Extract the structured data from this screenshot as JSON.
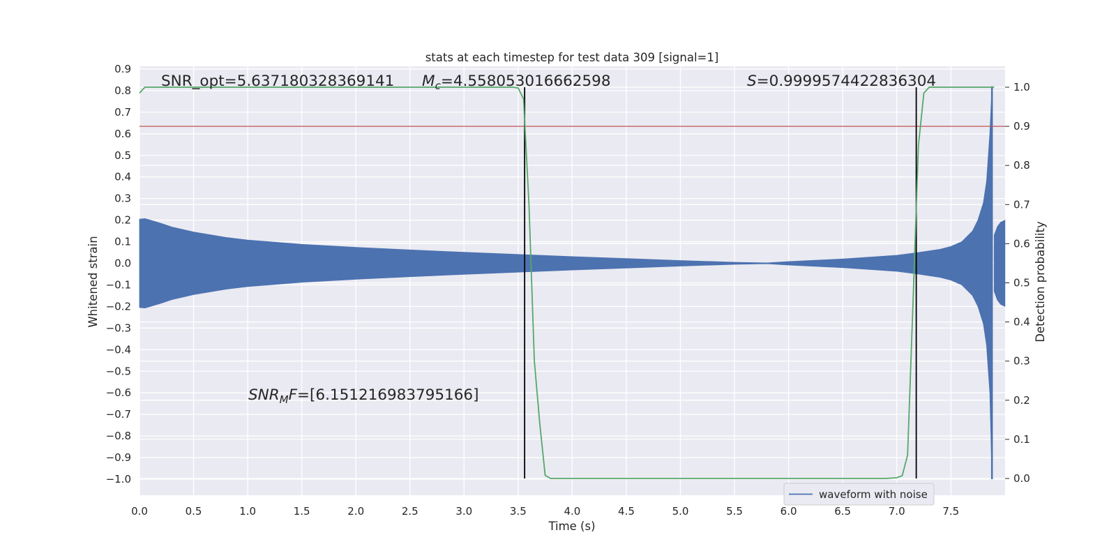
{
  "chart_data": {
    "type": "line",
    "title": "stats at each timestep for test data 309 [signal=1]",
    "xlabel": "Time (s)",
    "ylabel": "Whitened strain",
    "y2label": "Detection probability",
    "xlim": [
      0,
      8
    ],
    "ylim": [
      -1.1,
      0.9
    ],
    "y2lim": [
      -0.05,
      1.05
    ],
    "xticks": [
      0.0,
      0.5,
      1.0,
      1.5,
      2.0,
      2.5,
      3.0,
      3.5,
      4.0,
      4.5,
      5.0,
      5.5,
      6.0,
      6.5,
      7.0,
      7.5
    ],
    "xtick_labels": [
      "0.0",
      "0.5",
      "1.0",
      "1.5",
      "2.0",
      "2.5",
      "3.0",
      "3.5",
      "4.0",
      "4.5",
      "5.0",
      "5.5",
      "6.0",
      "6.5",
      "7.0",
      "7.5"
    ],
    "yticks": [
      0.9,
      0.8,
      0.7,
      0.6,
      0.5,
      0.4,
      0.3,
      0.2,
      0.1,
      0.0,
      -0.1,
      -0.2,
      -0.3,
      -0.4,
      -0.5,
      -0.6,
      -0.7,
      -0.8,
      -0.9,
      -1.0
    ],
    "ytick_labels": [
      "0.9",
      "0.8",
      "0.7",
      "0.6",
      "0.5",
      "0.4",
      "0.3",
      "0.2",
      "0.1",
      "0.0",
      "−0.1",
      "−0.2",
      "−0.3",
      "−0.4",
      "−0.5",
      "−0.6",
      "−0.7",
      "−0.8",
      "−0.9",
      "−1.0"
    ],
    "y2ticks": [
      1.0,
      0.9,
      0.8,
      0.7,
      0.6,
      0.5,
      0.4,
      0.3,
      0.2,
      0.1,
      0.0
    ],
    "y2tick_labels": [
      "1.0",
      "0.9",
      "0.8",
      "0.7",
      "0.6",
      "0.5",
      "0.4",
      "0.3",
      "0.2",
      "0.1",
      "0.0"
    ],
    "grid": true,
    "legend_position": "bottom-right",
    "colors": {
      "background": "#eaeaf2",
      "grid": "#ffffff",
      "waveform": "#4c72b0",
      "probability": "#55a868",
      "threshold": "#c44e52",
      "markers": "#000000"
    },
    "series": [
      {
        "name": "waveform with noise",
        "axis": "left",
        "kind": "envelope",
        "x": [
          0.0,
          0.05,
          0.1,
          0.2,
          0.3,
          0.5,
          0.8,
          1.0,
          1.5,
          2.0,
          2.5,
          3.0,
          3.5,
          4.0,
          4.5,
          5.0,
          5.5,
          5.8,
          6.0,
          6.5,
          7.0,
          7.2,
          7.4,
          7.5,
          7.6,
          7.7,
          7.75,
          7.8,
          7.83,
          7.86,
          7.88
        ],
        "upper": [
          0.205,
          0.207,
          0.2,
          0.185,
          0.168,
          0.145,
          0.12,
          0.108,
          0.088,
          0.074,
          0.062,
          0.051,
          0.041,
          0.031,
          0.022,
          0.013,
          0.005,
          0.002,
          0.008,
          0.02,
          0.037,
          0.05,
          0.065,
          0.078,
          0.1,
          0.15,
          0.2,
          0.28,
          0.38,
          0.6,
          0.82
        ],
        "lower": [
          -0.205,
          -0.207,
          -0.2,
          -0.185,
          -0.168,
          -0.145,
          -0.12,
          -0.108,
          -0.088,
          -0.074,
          -0.062,
          -0.051,
          -0.041,
          -0.031,
          -0.022,
          -0.013,
          -0.005,
          -0.002,
          -0.008,
          -0.02,
          -0.037,
          -0.05,
          -0.065,
          -0.078,
          -0.1,
          -0.15,
          -0.2,
          -0.28,
          -0.38,
          -0.6,
          -1.0
        ],
        "tail_x": [
          7.9,
          7.93,
          7.96,
          8.0
        ],
        "tail_upper": [
          0.13,
          0.17,
          0.19,
          0.2
        ],
        "tail_lower": [
          -0.13,
          -0.17,
          -0.19,
          -0.2
        ]
      },
      {
        "name": "detection probability",
        "axis": "right",
        "x": [
          0.0,
          0.05,
          0.5,
          1.0,
          2.0,
          3.0,
          3.45,
          3.5,
          3.55,
          3.6,
          3.65,
          3.7,
          3.75,
          3.8,
          4.0,
          5.0,
          6.0,
          6.9,
          7.0,
          7.05,
          7.1,
          7.15,
          7.2,
          7.25,
          7.3,
          7.5,
          7.9
        ],
        "y": [
          0.985,
          1.0,
          1.0,
          1.0,
          1.0,
          1.0,
          1.0,
          0.998,
          0.97,
          0.7,
          0.3,
          0.14,
          0.008,
          0.0,
          0.0,
          0.0,
          0.0,
          0.0,
          0.002,
          0.007,
          0.06,
          0.45,
          0.85,
          0.985,
          1.0,
          1.0,
          1.0
        ]
      }
    ],
    "threshold_line": {
      "axis": "right",
      "y": 0.9
    },
    "vertical_lines": [
      3.56,
      7.18
    ],
    "annotations": [
      {
        "id": "snr_opt",
        "text": "SNR_opt=5.637180328369141"
      },
      {
        "id": "mc",
        "text_symbol": "M",
        "text_sub": "c",
        "text_rest": "=4.558053016662598"
      },
      {
        "id": "s",
        "text_symbol": "S",
        "text_rest": "=0.9999574422836304"
      },
      {
        "id": "snr_mf",
        "text_symbol": "SNR",
        "text_sub": "M",
        "text_symbol2": "F",
        "text_rest": "=[6.151216983795166]"
      }
    ],
    "legend": [
      {
        "label": "waveform with noise",
        "color": "#4c72b0"
      }
    ]
  }
}
